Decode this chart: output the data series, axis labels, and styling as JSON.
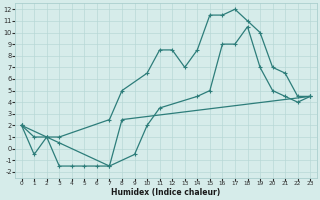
{
  "xlabel": "Humidex (Indice chaleur)",
  "bg_color": "#d6ecea",
  "grid_color": "#b8d8d6",
  "line_color": "#2d7d7a",
  "x_ticks": [
    0,
    1,
    2,
    3,
    4,
    5,
    6,
    7,
    8,
    9,
    10,
    11,
    12,
    13,
    14,
    15,
    16,
    17,
    18,
    19,
    20,
    21,
    22,
    23
  ],
  "y_ticks": [
    -2,
    -1,
    0,
    1,
    2,
    3,
    4,
    5,
    6,
    7,
    8,
    9,
    10,
    11,
    12
  ],
  "ylim": [
    -2.5,
    12.5
  ],
  "xlim": [
    -0.5,
    23.5
  ],
  "line1_x": [
    0,
    1,
    2,
    3,
    7,
    8,
    10,
    11,
    12,
    13,
    14,
    15,
    16,
    17,
    18,
    19,
    20,
    21,
    22,
    23
  ],
  "line1_y": [
    2,
    1,
    1,
    1,
    2.5,
    5,
    6.5,
    8.5,
    8.5,
    7,
    8.5,
    11.5,
    11.5,
    12,
    11,
    10,
    7,
    6.5,
    4.5,
    4.5
  ],
  "line2_x": [
    0,
    2,
    3,
    7,
    9,
    10,
    11,
    14,
    15,
    16,
    17,
    18,
    19,
    20,
    21,
    22,
    23
  ],
  "line2_y": [
    2,
    1,
    0.5,
    -1.5,
    -0.5,
    2,
    3.5,
    4.5,
    5,
    9,
    9,
    10.5,
    7,
    5,
    4.5,
    4,
    4.5
  ],
  "line3_x": [
    0,
    1,
    2,
    3,
    4,
    5,
    6,
    7,
    8,
    23
  ],
  "line3_y": [
    2,
    -0.5,
    1,
    -1.5,
    -1.5,
    -1.5,
    -1.5,
    -1.5,
    2.5,
    4.5
  ]
}
